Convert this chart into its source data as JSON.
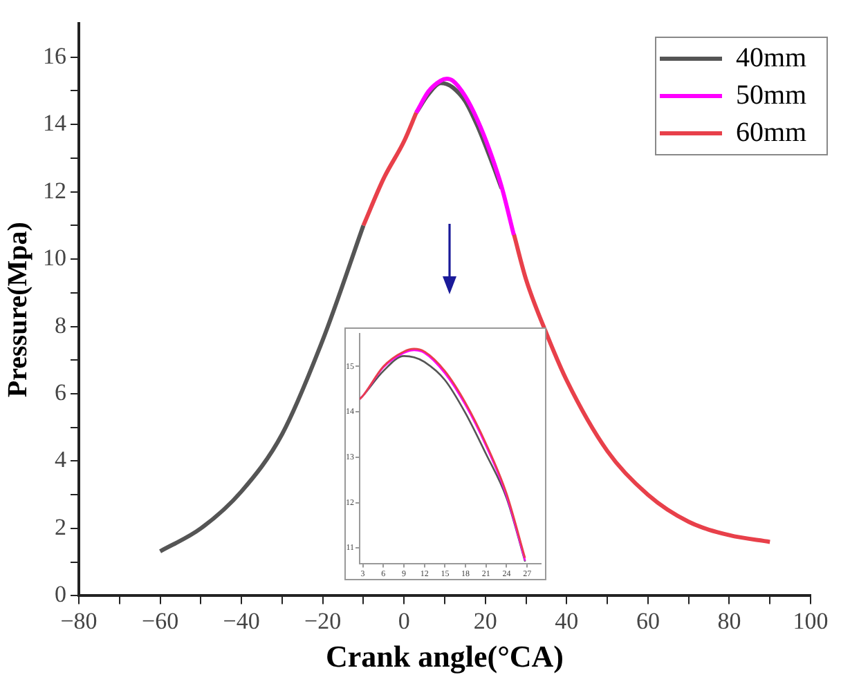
{
  "chart_data": [
    {
      "type": "line",
      "xlabel": "Crank angle(°CA)",
      "ylabel": "Pressure(Mpa)",
      "x": [
        -60,
        -50,
        -40,
        -30,
        -20,
        -10,
        -5,
        0,
        3,
        6,
        9,
        10.5,
        12,
        15,
        18,
        21,
        24,
        27,
        30,
        35,
        40,
        50,
        60,
        70,
        80,
        90
      ],
      "series": [
        {
          "name": "40mm",
          "color": "#555555",
          "values": [
            1.32,
            2.0,
            3.1,
            4.8,
            7.6,
            11.0,
            null,
            null,
            14.35,
            14.9,
            15.23,
            15.2,
            15.1,
            14.7,
            13.97,
            13.07,
            12.1,
            null,
            null,
            null,
            null,
            null,
            null,
            null,
            null,
            null
          ]
        },
        {
          "name": "50mm",
          "color": "#ff00ff",
          "values": [
            null,
            null,
            null,
            null,
            null,
            null,
            null,
            null,
            14.35,
            14.98,
            15.3,
            15.36,
            15.3,
            14.85,
            14.15,
            13.25,
            12.15,
            10.72,
            null,
            null,
            null,
            null,
            null,
            null,
            null,
            null
          ]
        },
        {
          "name": "60mm",
          "color": "#e8404a",
          "values": [
            null,
            null,
            null,
            null,
            null,
            11.0,
            12.4,
            13.5,
            14.35,
            null,
            null,
            null,
            null,
            null,
            null,
            null,
            null,
            10.75,
            9.4,
            7.8,
            6.4,
            4.3,
            3.0,
            2.2,
            1.8,
            1.6
          ]
        }
      ],
      "xlim": [
        -80,
        100
      ],
      "xticks": [
        -80,
        {
          "value": -70,
          "label": null
        },
        -60,
        {
          "value": -50,
          "label": null
        },
        -40,
        {
          "value": -30,
          "label": null
        },
        -20,
        {
          "value": -10,
          "label": null
        },
        0,
        {
          "value": 10,
          "label": null
        },
        20,
        {
          "value": 30,
          "label": null
        },
        40,
        {
          "value": 50,
          "label": null
        },
        60,
        {
          "value": 70,
          "label": null
        },
        80,
        {
          "value": 90,
          "label": null
        },
        100
      ],
      "ylim": [
        0,
        17
      ],
      "yticks": [
        0,
        {
          "value": 1,
          "label": null
        },
        2,
        {
          "value": 3,
          "label": null
        },
        4,
        {
          "value": 5,
          "label": null
        },
        6,
        {
          "value": 7,
          "label": null
        },
        8,
        {
          "value": 9,
          "label": null
        },
        10,
        {
          "value": 11,
          "label": null
        },
        12,
        {
          "value": 13,
          "label": null
        },
        14,
        {
          "value": 15,
          "label": null
        },
        16
      ],
      "grid": false,
      "legend": "top right",
      "marker": "none",
      "line_style": "solid"
    },
    {
      "type": "line",
      "x": [
        2.54,
        3,
        6,
        9,
        10.5,
        12,
        15,
        18,
        21,
        24,
        26.7
      ],
      "series": [
        {
          "color": "#555555",
          "values": [
            14.28,
            14.35,
            14.9,
            15.23,
            15.2,
            15.1,
            14.7,
            13.97,
            13.07,
            12.1,
            10.7
          ]
        },
        {
          "color": "#ff00ff",
          "values": [
            14.28,
            14.35,
            14.98,
            15.3,
            15.36,
            15.3,
            14.85,
            14.15,
            13.25,
            12.15,
            10.72
          ]
        },
        {
          "color": "#e8404a",
          "values": [
            14.28,
            14.35,
            15.0,
            15.33,
            15.39,
            15.33,
            14.9,
            14.2,
            13.3,
            12.2,
            10.78
          ]
        }
      ],
      "xlim": [
        2.54,
        29
      ],
      "xticks": [
        3,
        6,
        9,
        12,
        15,
        18,
        21,
        24,
        27
      ],
      "ylim": [
        10.66,
        15.72
      ],
      "yticks": [
        11,
        12,
        13,
        14,
        15
      ],
      "grid": false,
      "legend": false,
      "marker": "none",
      "line_style": "solid"
    }
  ]
}
